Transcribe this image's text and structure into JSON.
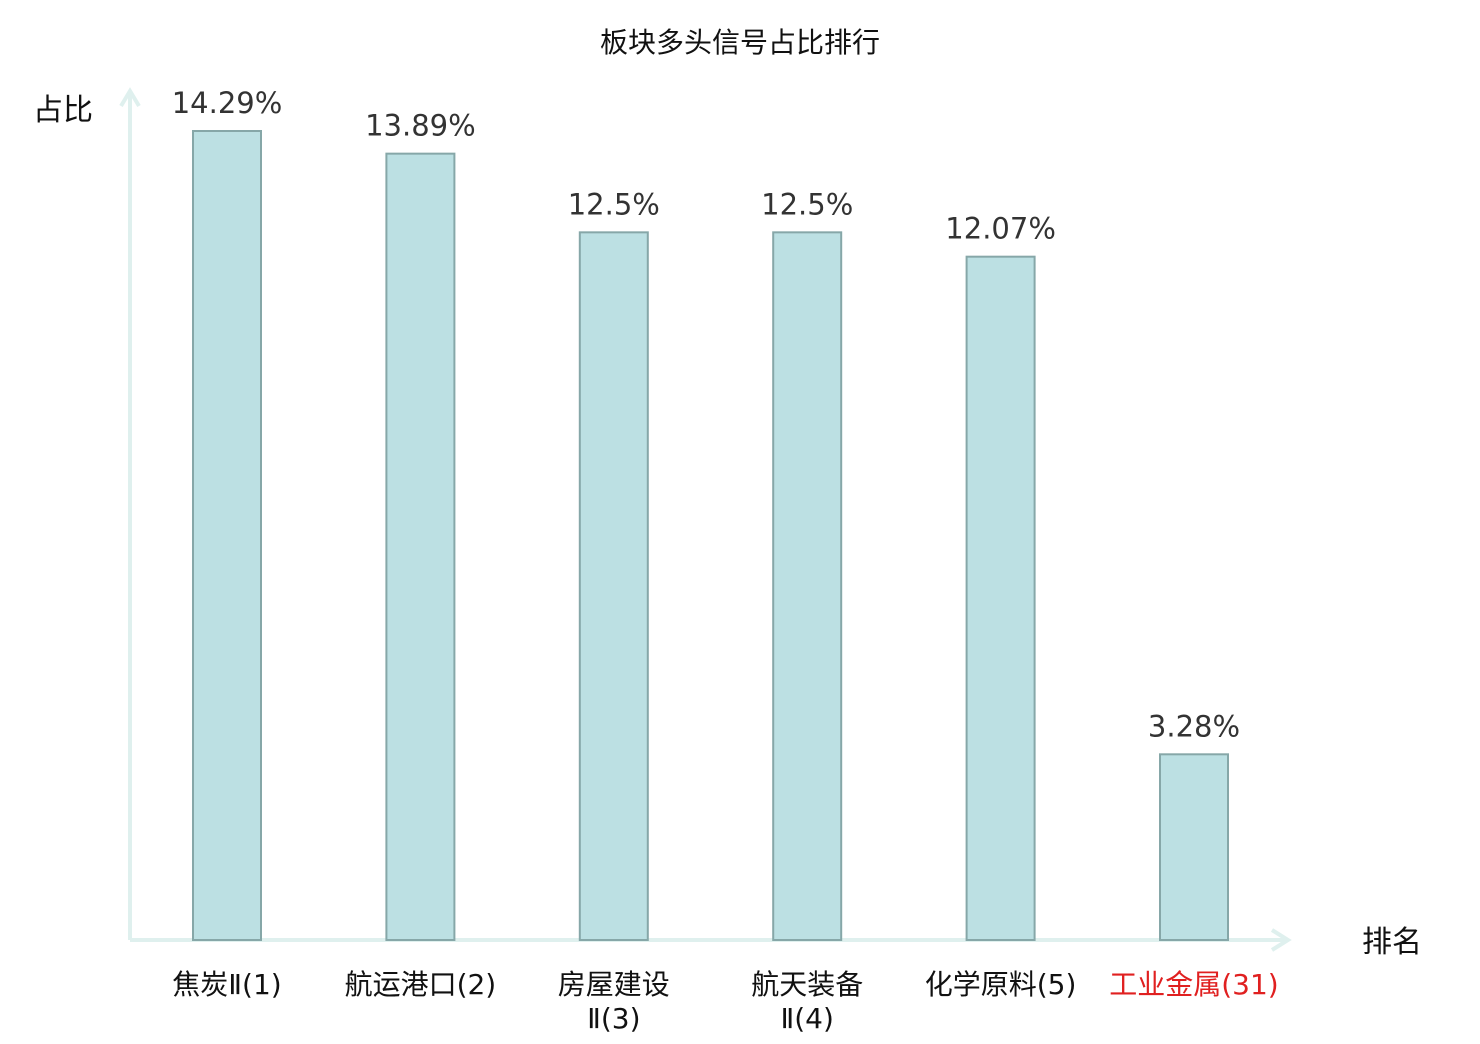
{
  "chart_data": {
    "type": "bar",
    "title": "板块多头信号占比排行",
    "ylabel": "占比",
    "xlabel": "排名",
    "categories": [
      {
        "name": "焦炭Ⅱ",
        "rank": "(1)",
        "lines": [
          "焦炭Ⅱ(1)"
        ],
        "highlight": false
      },
      {
        "name": "航运港口",
        "rank": "(2)",
        "lines": [
          "航运港口(2)"
        ],
        "highlight": false
      },
      {
        "name": "房屋建设Ⅱ",
        "rank": "(3)",
        "lines": [
          "房屋建设",
          "Ⅱ(3)"
        ],
        "highlight": false
      },
      {
        "name": "航天装备Ⅱ",
        "rank": "(4)",
        "lines": [
          "航天装备",
          "Ⅱ(4)"
        ],
        "highlight": false
      },
      {
        "name": "化学原料",
        "rank": "(5)",
        "lines": [
          "化学原料(5)"
        ],
        "highlight": false
      },
      {
        "name": "工业金属",
        "rank": "(31)",
        "lines": [
          "工业金属(31)"
        ],
        "highlight": true
      }
    ],
    "values": [
      14.29,
      13.89,
      12.5,
      12.5,
      12.07,
      3.28
    ],
    "value_labels": [
      "14.29%",
      "13.89%",
      "12.5%",
      "12.5%",
      "12.07%",
      "3.28%"
    ],
    "unit": "%",
    "ylim": [
      0,
      14.29
    ],
    "grid": false,
    "legend": "none",
    "colors": {
      "bar_fill": "#bce0e3",
      "bar_stroke": "#86a7a8",
      "axis": "#dff0ee",
      "highlight_text": "#e02020",
      "normal_text": "#111111"
    }
  }
}
